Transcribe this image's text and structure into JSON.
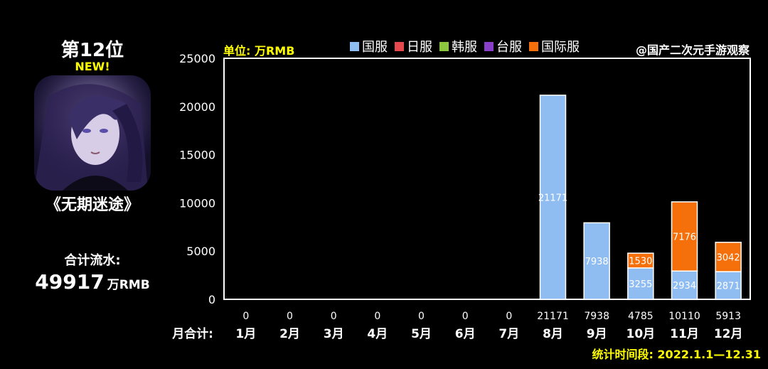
{
  "sidebar": {
    "rank": "第12位",
    "badge": "NEW!",
    "game_name": "《无期迷途》",
    "total_label": "合计流水:",
    "total_value": "49917",
    "total_unit": "万RMB"
  },
  "header": {
    "unit_label": "单位: 万RMB",
    "watermark": "@国产二次元手游观察"
  },
  "footer": {
    "period": "统计时间段: 2022.1.1—12.31"
  },
  "colors": {
    "国服": "#8fbdf2",
    "日服": "#e5484d",
    "韩服": "#8cc63e",
    "台服": "#8a3fc8",
    "国际服": "#f5700a"
  },
  "chart_data": {
    "type": "bar",
    "stacked": true,
    "categories": [
      "1月",
      "2月",
      "3月",
      "4月",
      "5月",
      "6月",
      "7月",
      "8月",
      "9月",
      "10月",
      "11月",
      "12月"
    ],
    "series": [
      {
        "name": "国服",
        "values": [
          0,
          0,
          0,
          0,
          0,
          0,
          0,
          21171,
          7938,
          3255,
          2934,
          2871
        ]
      },
      {
        "name": "日服",
        "values": [
          0,
          0,
          0,
          0,
          0,
          0,
          0,
          0,
          0,
          0,
          0,
          0
        ]
      },
      {
        "name": "韩服",
        "values": [
          0,
          0,
          0,
          0,
          0,
          0,
          0,
          0,
          0,
          0,
          0,
          0
        ]
      },
      {
        "name": "台服",
        "values": [
          0,
          0,
          0,
          0,
          0,
          0,
          0,
          0,
          0,
          0,
          0,
          0
        ]
      },
      {
        "name": "国际服",
        "values": [
          0,
          0,
          0,
          0,
          0,
          0,
          0,
          0,
          0,
          1530,
          7176,
          3042
        ]
      }
    ],
    "monthly_totals": [
      0,
      0,
      0,
      0,
      0,
      0,
      0,
      21171,
      7938,
      4785,
      10110,
      5913
    ],
    "totals_label": "月合计:",
    "ylim": [
      0,
      25000
    ],
    "yticks": [
      0,
      5000,
      10000,
      15000,
      20000,
      25000
    ],
    "grid": false,
    "legend": "top"
  }
}
